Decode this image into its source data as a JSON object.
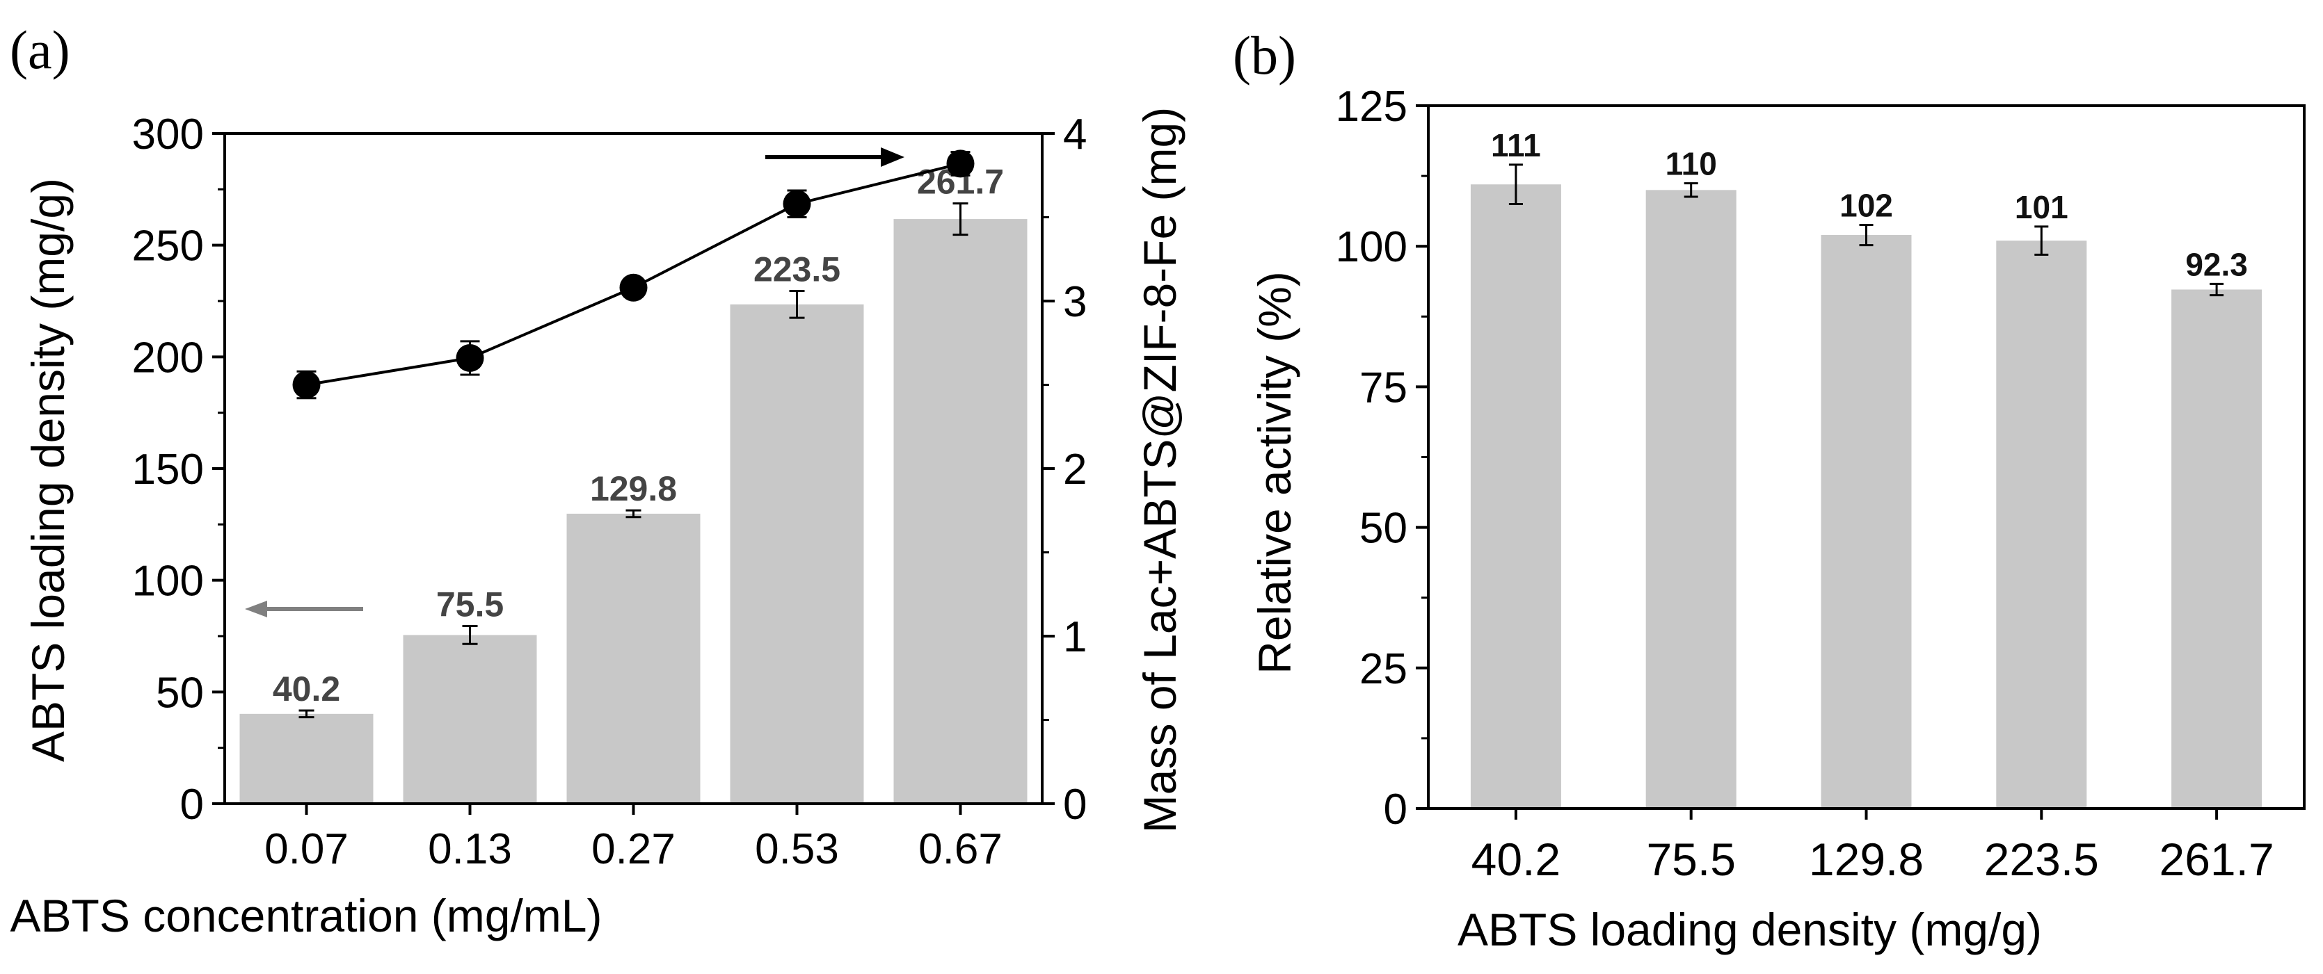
{
  "panels": {
    "a": {
      "label": "(a)"
    },
    "b": {
      "label": "(b)"
    }
  },
  "chart_data": [
    {
      "type": "bar",
      "panel": "(a)",
      "title": "",
      "xlabel": "ABTS concentration (mg/mL)",
      "ylabel": "ABTS loading density (mg/g)",
      "y2label": "Mass of Lac+ABTS@ZIF-8-Fe (mg)",
      "categories": [
        "0.07",
        "0.13",
        "0.27",
        "0.53",
        "0.67"
      ],
      "ylim": [
        0,
        300
      ],
      "yticks": [
        0,
        50,
        100,
        150,
        200,
        250,
        300
      ],
      "y2lim": [
        0,
        4
      ],
      "y2ticks": [
        0,
        1,
        2,
        3,
        4
      ],
      "series": [
        {
          "name": "ABTS loading density",
          "kind": "bar",
          "axis": "left",
          "values": [
            40.2,
            75.5,
            129.8,
            223.5,
            261.7
          ],
          "errors": [
            1.5,
            4,
            1.5,
            6,
            7
          ],
          "labels": [
            "40.2",
            "75.5",
            "129.8",
            "223.5",
            "261.7"
          ],
          "color": "#c8c8c8"
        },
        {
          "name": "Mass of Lac+ABTS@ZIF-8-Fe",
          "kind": "line",
          "axis": "right",
          "values": [
            2.5,
            2.66,
            3.08,
            3.58,
            3.82
          ],
          "errors": [
            0.08,
            0.1,
            0.05,
            0.08,
            0.07
          ],
          "color": "#000000"
        }
      ],
      "annotations": [
        {
          "type": "arrow",
          "direction": "left",
          "meaning": "left axis",
          "color": "#808080"
        },
        {
          "type": "arrow",
          "direction": "right",
          "meaning": "right axis",
          "color": "#000000"
        }
      ]
    },
    {
      "type": "bar",
      "panel": "(b)",
      "title": "",
      "xlabel": "ABTS loading density (mg/g)",
      "ylabel": "Relative activity (%)",
      "categories": [
        "40.2",
        "75.5",
        "129.8",
        "223.5",
        "261.7"
      ],
      "ylim": [
        0,
        125
      ],
      "yticks": [
        0,
        25,
        50,
        75,
        100,
        125
      ],
      "series": [
        {
          "name": "Relative activity",
          "values": [
            111,
            110,
            102,
            101,
            92.3
          ],
          "errors": [
            3.5,
            1.2,
            1.8,
            2.5,
            1.0
          ],
          "labels": [
            "111",
            "110",
            "102",
            "101",
            "92.3"
          ],
          "color": "#c8c8c8"
        }
      ]
    }
  ]
}
